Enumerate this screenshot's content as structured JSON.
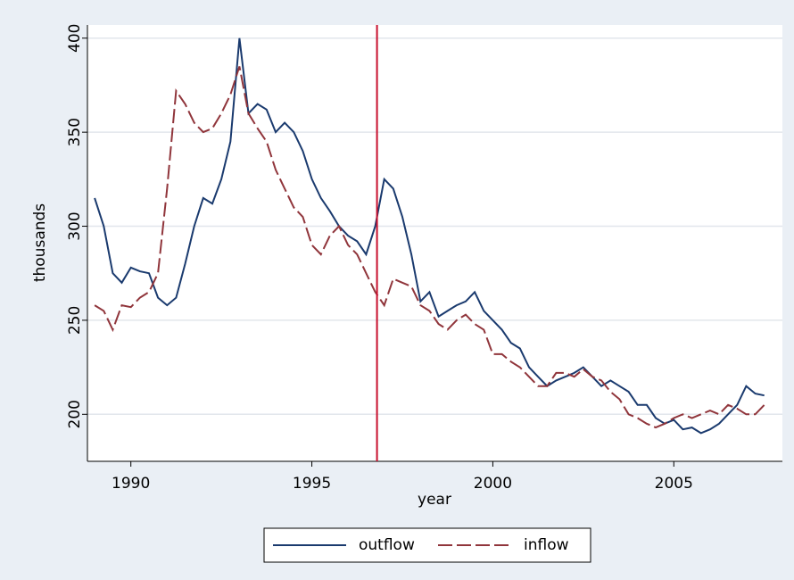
{
  "chart_data": {
    "type": "line",
    "x": [
      1989.0,
      1989.25,
      1989.5,
      1989.75,
      1990.0,
      1990.25,
      1990.5,
      1990.75,
      1991.0,
      1991.25,
      1991.5,
      1991.75,
      1992.0,
      1992.25,
      1992.5,
      1992.75,
      1993.0,
      1993.25,
      1993.5,
      1993.75,
      1994.0,
      1994.25,
      1994.5,
      1994.75,
      1995.0,
      1995.25,
      1995.5,
      1995.75,
      1996.0,
      1996.25,
      1996.5,
      1996.75,
      1997.0,
      1997.25,
      1997.5,
      1997.75,
      1998.0,
      1998.25,
      1998.5,
      1998.75,
      1999.0,
      1999.25,
      1999.5,
      1999.75,
      2000.0,
      2000.25,
      2000.5,
      2000.75,
      2001.0,
      2001.25,
      2001.5,
      2001.75,
      2002.0,
      2002.25,
      2002.5,
      2002.75,
      2003.0,
      2003.25,
      2003.5,
      2003.75,
      2004.0,
      2004.25,
      2004.5,
      2004.75,
      2005.0,
      2005.25,
      2005.5,
      2005.75,
      2006.0,
      2006.25,
      2006.5,
      2006.75,
      2007.0,
      2007.25,
      2007.5
    ],
    "series": [
      {
        "name": "outflow",
        "color": "#1a3a6e",
        "dash": "none",
        "values": [
          315,
          300,
          275,
          270,
          278,
          276,
          275,
          262,
          258,
          262,
          280,
          300,
          315,
          312,
          325,
          345,
          400,
          360,
          365,
          362,
          350,
          355,
          350,
          340,
          325,
          315,
          308,
          300,
          295,
          292,
          285,
          300,
          325,
          320,
          305,
          285,
          260,
          265,
          252,
          255,
          258,
          260,
          265,
          255,
          250,
          245,
          238,
          235,
          225,
          220,
          215,
          218,
          220,
          222,
          225,
          220,
          215,
          218,
          215,
          212,
          205,
          205,
          198,
          195,
          197,
          192,
          193,
          190,
          192,
          195,
          200,
          205,
          215,
          211,
          210
        ]
      },
      {
        "name": "inflow",
        "color": "#90353b",
        "dash": "16 5",
        "values": [
          258,
          255,
          245,
          258,
          257,
          262,
          265,
          275,
          320,
          372,
          365,
          355,
          350,
          352,
          360,
          370,
          385,
          360,
          352,
          345,
          330,
          320,
          310,
          305,
          290,
          285,
          295,
          300,
          290,
          285,
          275,
          265,
          258,
          272,
          270,
          268,
          258,
          255,
          248,
          245,
          250,
          253,
          248,
          245,
          232,
          232,
          228,
          225,
          220,
          215,
          215,
          222,
          222,
          220,
          224,
          220,
          218,
          212,
          208,
          200,
          198,
          195,
          193,
          195,
          198,
          200,
          198,
          200,
          202,
          200,
          205,
          203,
          200,
          200,
          205
        ]
      }
    ],
    "xlabel": "year",
    "ylabel": "thousands",
    "xlim": [
      1988.8,
      2008
    ],
    "ylim": [
      175,
      407
    ],
    "xticks": [
      1990,
      1995,
      2000,
      2005
    ],
    "yticks": [
      200,
      250,
      300,
      350,
      400
    ],
    "xline": 1996.8,
    "xline_color": "#c8102e",
    "grid": true
  }
}
